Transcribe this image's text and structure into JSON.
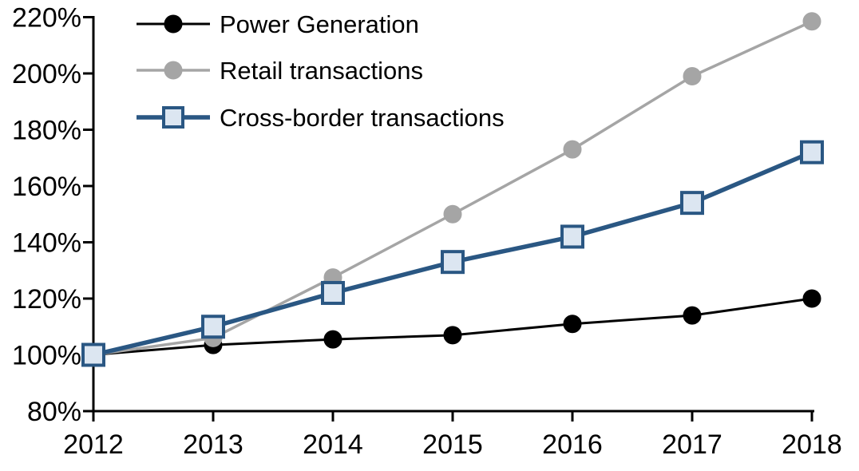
{
  "chart_data": {
    "type": "line",
    "title": "",
    "xlabel": "",
    "ylabel": "",
    "categories": [
      "2012",
      "2013",
      "2014",
      "2015",
      "2016",
      "2017",
      "2018"
    ],
    "series": [
      {
        "name": "Power Generation",
        "values": [
          100,
          103.5,
          105.5,
          107,
          111,
          114,
          120
        ],
        "line_color": "#000000",
        "line_width": 3,
        "marker": "circle",
        "marker_fill": "#000000",
        "marker_stroke": "#000000"
      },
      {
        "name": "Retail transactions",
        "values": [
          100,
          106,
          127.5,
          150,
          173,
          199,
          218.5
        ],
        "line_color": "#A5A5A5",
        "line_width": 3.5,
        "marker": "circle",
        "marker_fill": "#A5A5A5",
        "marker_stroke": "#A5A5A5"
      },
      {
        "name": "Cross-border transactions",
        "values": [
          100,
          110,
          122,
          133,
          142,
          154,
          172
        ],
        "line_color": "#2A5783",
        "line_width": 5.5,
        "marker": "square",
        "marker_fill": "#DCE6F1",
        "marker_stroke": "#2A5783"
      }
    ],
    "ylim": [
      80,
      220
    ],
    "y_tick_step": 20,
    "y_tick_labels": [
      "80%",
      "100%",
      "120%",
      "140%",
      "160%",
      "180%",
      "200%",
      "220%"
    ],
    "x_tick_labels": [
      "2012",
      "2013",
      "2014",
      "2015",
      "2016",
      "2017",
      "2018"
    ],
    "grid": false,
    "legend_position": "top-left",
    "axis_color": "#000000"
  }
}
